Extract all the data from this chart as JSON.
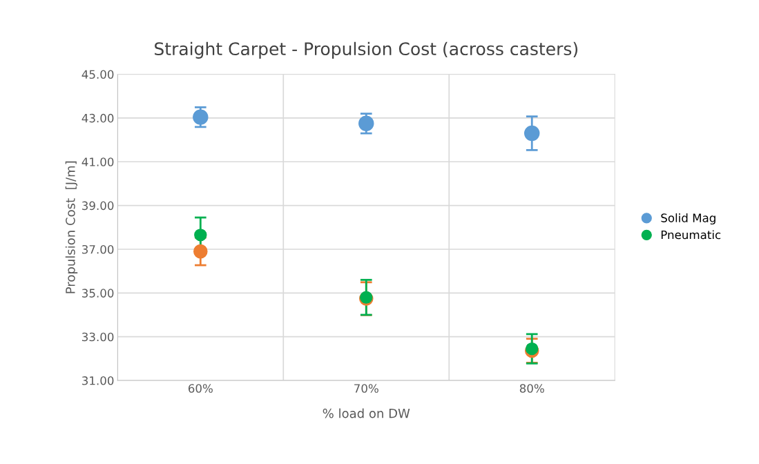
{
  "chart_data": {
    "type": "scatter",
    "title": "Straight Carpet - Propulsion Cost (across casters)",
    "xlabel": "% load on DW",
    "ylabel": "Propulsion Cost  [J/m]",
    "categories": [
      "60%",
      "70%",
      "80%"
    ],
    "series": [
      {
        "name": "Solid Mag",
        "color": "#5b9bd5",
        "values": [
          43.04,
          42.75,
          42.3
        ],
        "errors": [
          0.45,
          0.45,
          0.77
        ]
      },
      {
        "color": "#ed7d31",
        "values": [
          36.9,
          34.74,
          32.36
        ],
        "errors": [
          0.63,
          0.75,
          0.55
        ]
      },
      {
        "name": "Pneumatic",
        "color": "#00b050",
        "values": [
          37.65,
          34.8,
          32.45
        ],
        "errors": [
          0.8,
          0.8,
          0.67
        ]
      }
    ],
    "ylim": [
      31,
      45
    ],
    "yticks": [
      {
        "value": 31,
        "label": "31.00"
      },
      {
        "value": 33,
        "label": "33.00"
      },
      {
        "value": 35,
        "label": "35.00"
      },
      {
        "value": 37,
        "label": "37.00"
      },
      {
        "value": 39,
        "label": "39.00"
      },
      {
        "value": 41,
        "label": "41.00"
      },
      {
        "value": 43,
        "label": "43.00"
      },
      {
        "value": 45,
        "label": "45.00"
      }
    ],
    "grid": true,
    "legend": "right",
    "marker": "circle"
  }
}
